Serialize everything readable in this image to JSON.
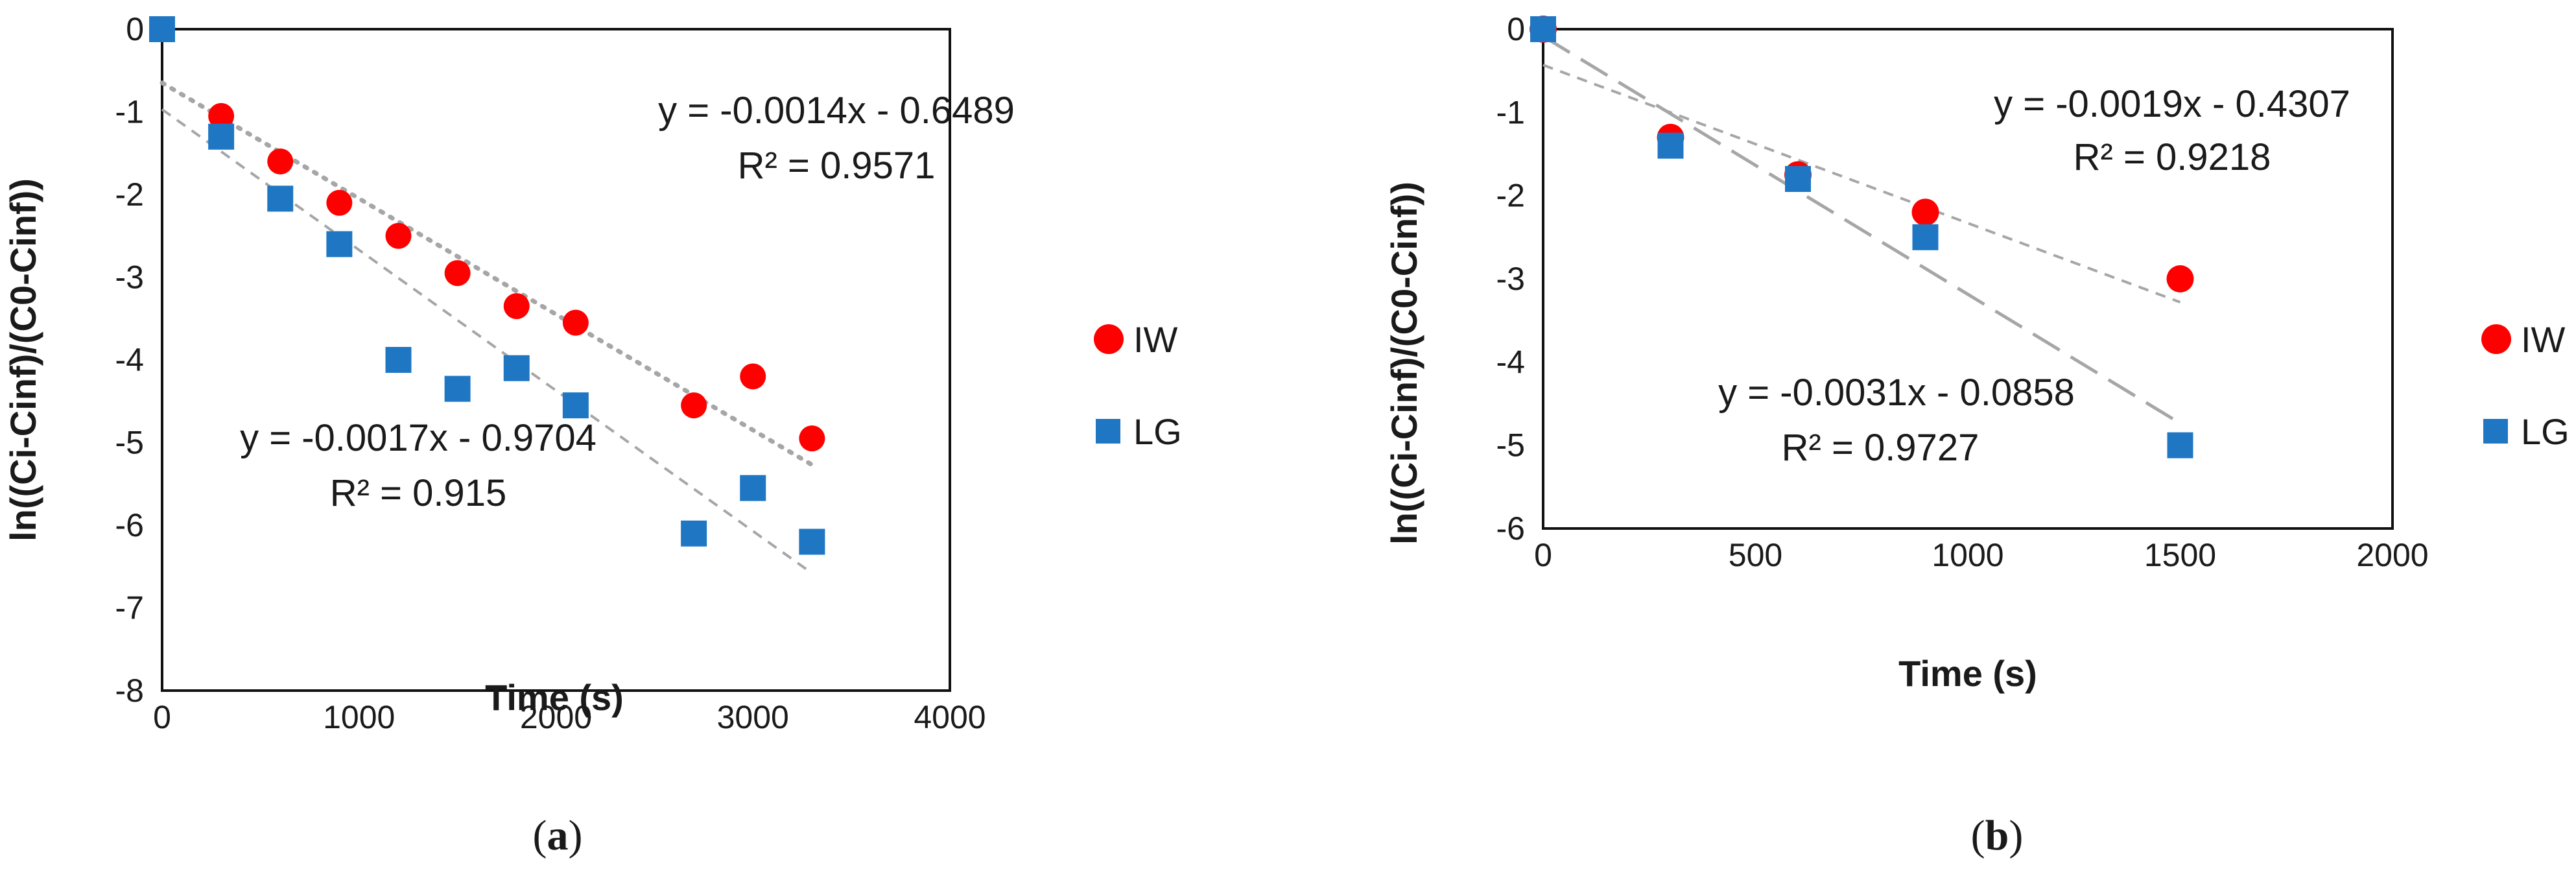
{
  "colors": {
    "IW": "#ff0000",
    "LG": "#1f77c4",
    "trendline": "#a6a6a6"
  },
  "chart_data": [
    {
      "panel": "(a)",
      "type": "scatter",
      "xlabel": "Time (s)",
      "ylabel": "ln((Ci-Cinf)/(C0-Cinf))",
      "xlim": [
        0,
        4000
      ],
      "ylim": [
        -8,
        0
      ],
      "x_ticks": [
        "0",
        "1000",
        "2000",
        "3000",
        "4000"
      ],
      "y_ticks": [
        "0",
        "-1",
        "-2",
        "-3",
        "-4",
        "-5",
        "-6",
        "-7",
        "-8"
      ],
      "grid": false,
      "legend_position": "right",
      "series": [
        {
          "name": "IW",
          "marker": "circle",
          "points": [
            [
              0,
              0
            ],
            [
              300,
              -1.05
            ],
            [
              600,
              -1.6
            ],
            [
              900,
              -2.1
            ],
            [
              1200,
              -2.5
            ],
            [
              1500,
              -2.95
            ],
            [
              1800,
              -3.35
            ],
            [
              2100,
              -3.55
            ],
            [
              2700,
              -4.55
            ],
            [
              3000,
              -4.2
            ],
            [
              3300,
              -4.95
            ]
          ],
          "trendline": {
            "style": "dotted",
            "slope": -0.0014,
            "intercept": -0.6489,
            "x_range": [
              0,
              3300
            ]
          },
          "equation": "y = -0.0014x - 0.6489",
          "r2": "R² = 0.9571"
        },
        {
          "name": "LG",
          "marker": "square",
          "points": [
            [
              0,
              0
            ],
            [
              300,
              -1.3
            ],
            [
              600,
              -2.05
            ],
            [
              900,
              -2.6
            ],
            [
              1200,
              -4.0
            ],
            [
              1500,
              -4.35
            ],
            [
              1800,
              -4.1
            ],
            [
              2100,
              -4.55
            ],
            [
              2700,
              -6.1
            ],
            [
              3000,
              -5.55
            ],
            [
              3300,
              -6.2
            ]
          ],
          "trendline": {
            "style": "dashed",
            "slope": -0.0017,
            "intercept": -0.9704,
            "x_range": [
              0,
              3300
            ]
          },
          "equation": "y = -0.0017x - 0.9704",
          "r2": "R² = 0.915"
        }
      ]
    },
    {
      "panel": "(b)",
      "type": "scatter",
      "xlabel": "Time (s)",
      "ylabel": "ln((Ci-Cinf)/(C0-Cinf))",
      "xlim": [
        0,
        2000
      ],
      "ylim": [
        -6,
        0
      ],
      "x_ticks": [
        "0",
        "500",
        "1000",
        "1500",
        "2000"
      ],
      "y_ticks": [
        "0",
        "-1",
        "-2",
        "-3",
        "-4",
        "-5",
        "-6"
      ],
      "grid": false,
      "legend_position": "right",
      "series": [
        {
          "name": "IW",
          "marker": "circle",
          "points": [
            [
              0,
              0
            ],
            [
              300,
              -1.3
            ],
            [
              600,
              -1.75
            ],
            [
              900,
              -2.2
            ],
            [
              1500,
              -3.0
            ]
          ],
          "trendline": {
            "style": "dashed",
            "slope": -0.0019,
            "intercept": -0.4307,
            "x_range": [
              0,
              1500
            ]
          },
          "equation": "y = -0.0019x - 0.4307",
          "r2": "R² = 0.9218"
        },
        {
          "name": "LG",
          "marker": "square",
          "points": [
            [
              0,
              0
            ],
            [
              300,
              -1.4
            ],
            [
              600,
              -1.8
            ],
            [
              900,
              -2.5
            ],
            [
              1500,
              -5.0
            ]
          ],
          "trendline": {
            "style": "longdash",
            "slope": -0.0031,
            "intercept": -0.0858,
            "x_range": [
              0,
              1500
            ]
          },
          "equation": "y = -0.0031x - 0.0858",
          "r2": "R² = 0.9727"
        }
      ]
    }
  ],
  "captions": [
    {
      "open": "(",
      "letter": "a",
      "close": ")"
    },
    {
      "open": "(",
      "letter": "b",
      "close": ")"
    }
  ]
}
